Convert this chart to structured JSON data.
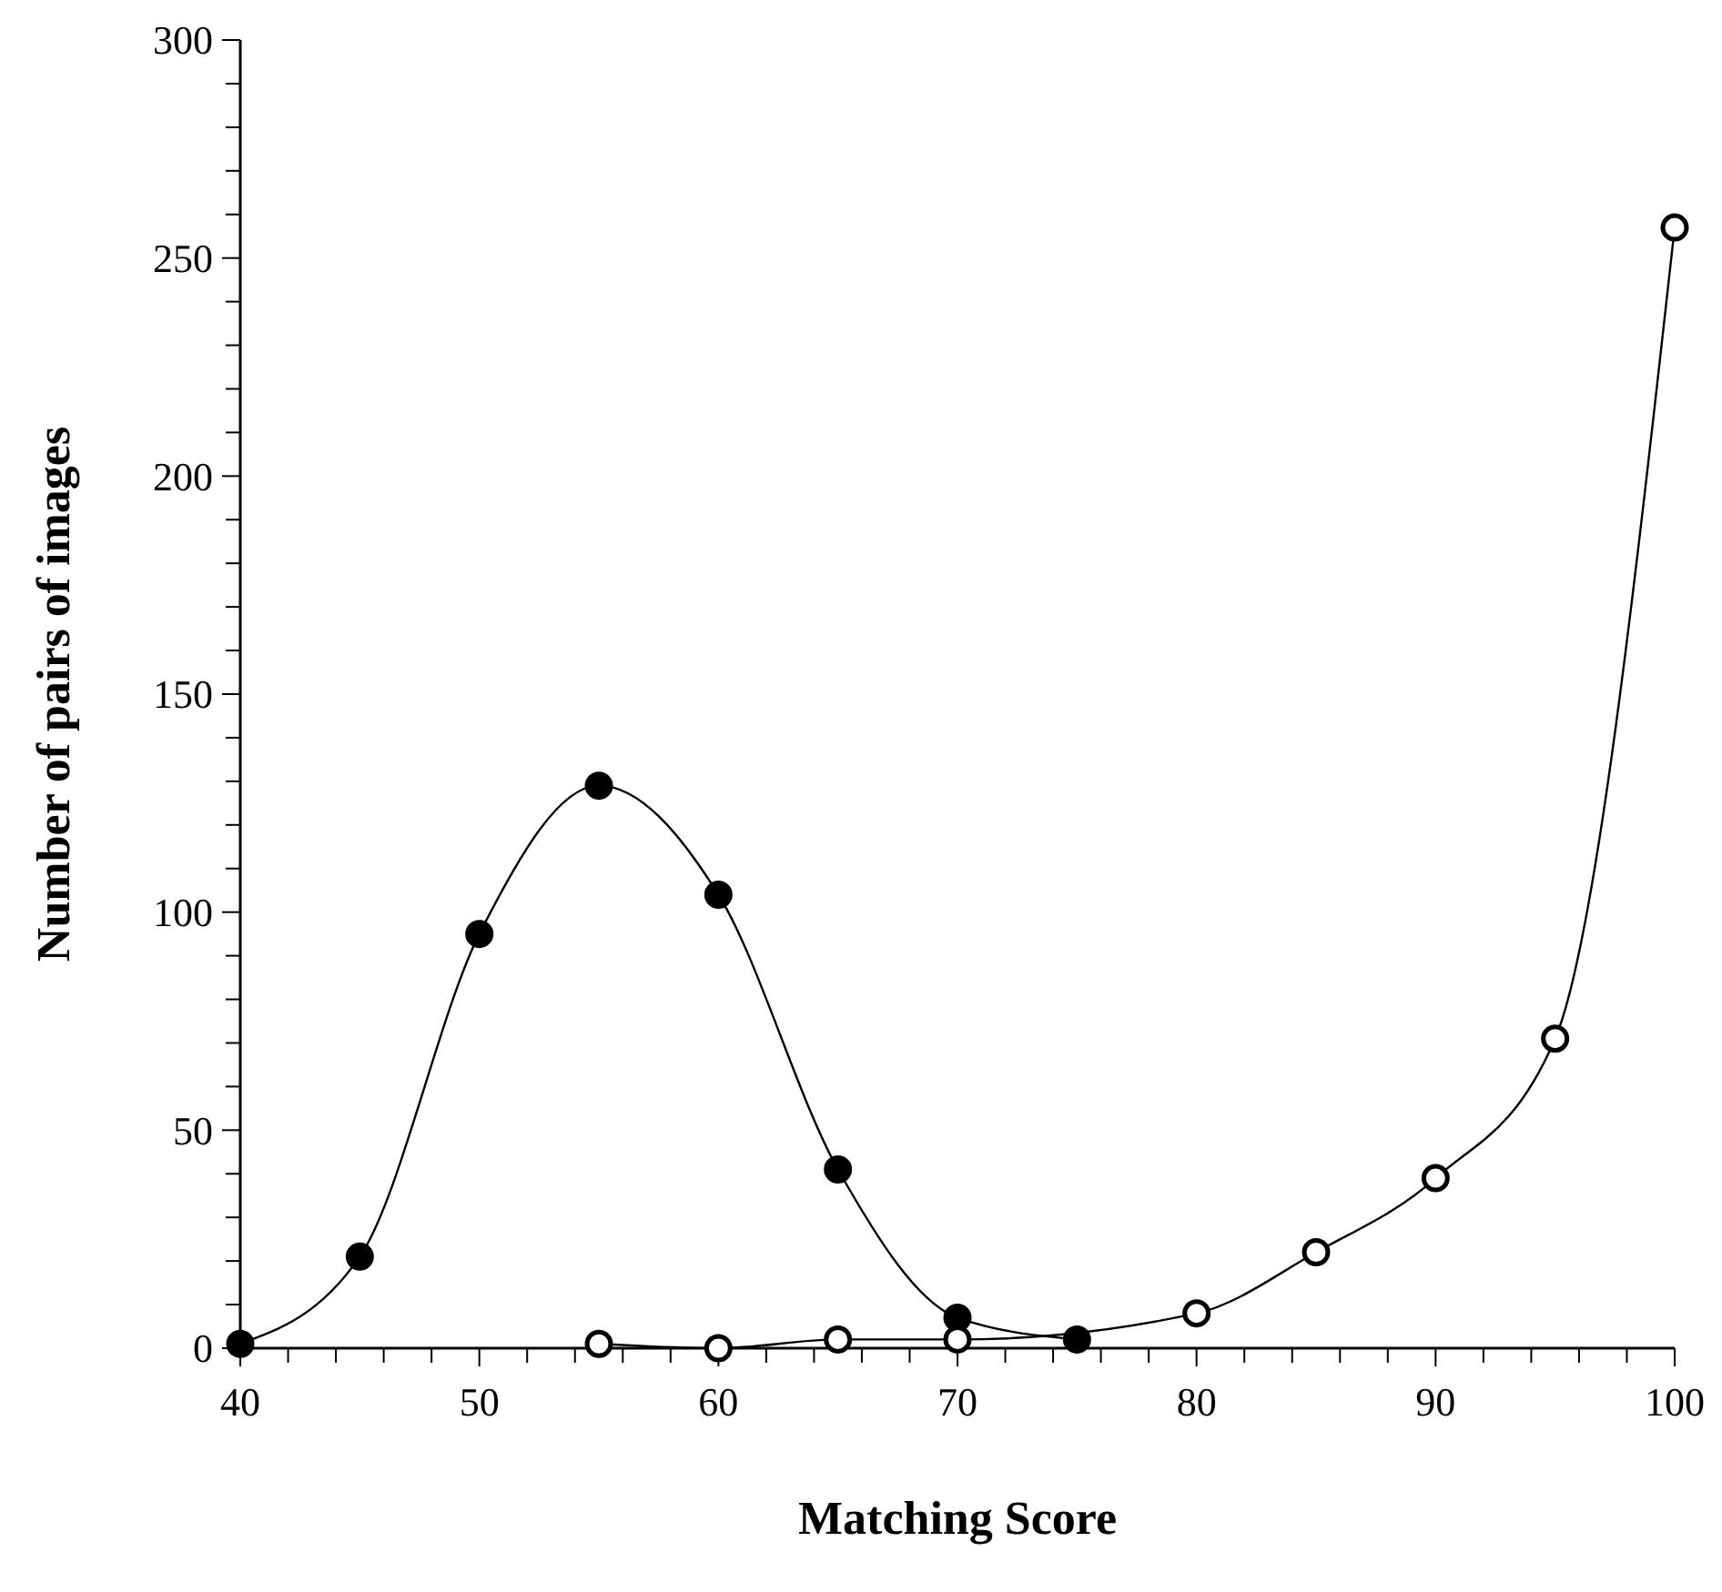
{
  "chart_data": {
    "type": "line",
    "xlabel": "Matching Score",
    "ylabel": "Number of pairs of images",
    "xlim": [
      40,
      100
    ],
    "ylim": [
      0,
      300
    ],
    "xticks": [
      40,
      {
        "value": 42,
        "label": null
      },
      {
        "value": 44,
        "label": null
      },
      {
        "value": 46,
        "label": null
      },
      {
        "value": 48,
        "label": null
      },
      50,
      {
        "value": 52,
        "label": null
      },
      {
        "value": 54,
        "label": null
      },
      {
        "value": 56,
        "label": null
      },
      {
        "value": 58,
        "label": null
      },
      60,
      {
        "value": 62,
        "label": null
      },
      {
        "value": 64,
        "label": null
      },
      {
        "value": 66,
        "label": null
      },
      {
        "value": 68,
        "label": null
      },
      70,
      {
        "value": 72,
        "label": null
      },
      {
        "value": 74,
        "label": null
      },
      {
        "value": 76,
        "label": null
      },
      {
        "value": 78,
        "label": null
      },
      80,
      {
        "value": 82,
        "label": null
      },
      {
        "value": 84,
        "label": null
      },
      {
        "value": 86,
        "label": null
      },
      {
        "value": 88,
        "label": null
      },
      90,
      {
        "value": 92,
        "label": null
      },
      {
        "value": 94,
        "label": null
      },
      {
        "value": 96,
        "label": null
      },
      {
        "value": 98,
        "label": null
      },
      100
    ],
    "yticks": [
      0,
      {
        "value": 10,
        "label": null
      },
      {
        "value": 20,
        "label": null
      },
      {
        "value": 30,
        "label": null
      },
      {
        "value": 40,
        "label": null
      },
      50,
      {
        "value": 60,
        "label": null
      },
      {
        "value": 70,
        "label": null
      },
      {
        "value": 80,
        "label": null
      },
      {
        "value": 90,
        "label": null
      },
      100,
      {
        "value": 110,
        "label": null
      },
      {
        "value": 120,
        "label": null
      },
      {
        "value": 130,
        "label": null
      },
      {
        "value": 140,
        "label": null
      },
      150,
      {
        "value": 160,
        "label": null
      },
      {
        "value": 170,
        "label": null
      },
      {
        "value": 180,
        "label": null
      },
      {
        "value": 190,
        "label": null
      },
      200,
      {
        "value": 210,
        "label": null
      },
      {
        "value": 220,
        "label": null
      },
      {
        "value": 230,
        "label": null
      },
      {
        "value": 240,
        "label": null
      },
      250,
      {
        "value": 260,
        "label": null
      },
      {
        "value": 270,
        "label": null
      },
      {
        "value": 280,
        "label": null
      },
      {
        "value": 290,
        "label": null
      },
      300
    ],
    "grid": false,
    "marker": "circle",
    "line_style": "solid",
    "series": [
      {
        "color": "#000000",
        "x": [
          40,
          45,
          50,
          55,
          60,
          65,
          70,
          75
        ],
        "values": [
          1,
          21,
          95,
          129,
          104,
          41,
          7,
          2
        ]
      },
      {
        "color": "#ffffff",
        "x": [
          55,
          60,
          65,
          70,
          80,
          85,
          90,
          95,
          100
        ],
        "values": [
          1,
          0,
          2,
          2,
          8,
          22,
          39,
          71,
          257
        ]
      }
    ]
  }
}
